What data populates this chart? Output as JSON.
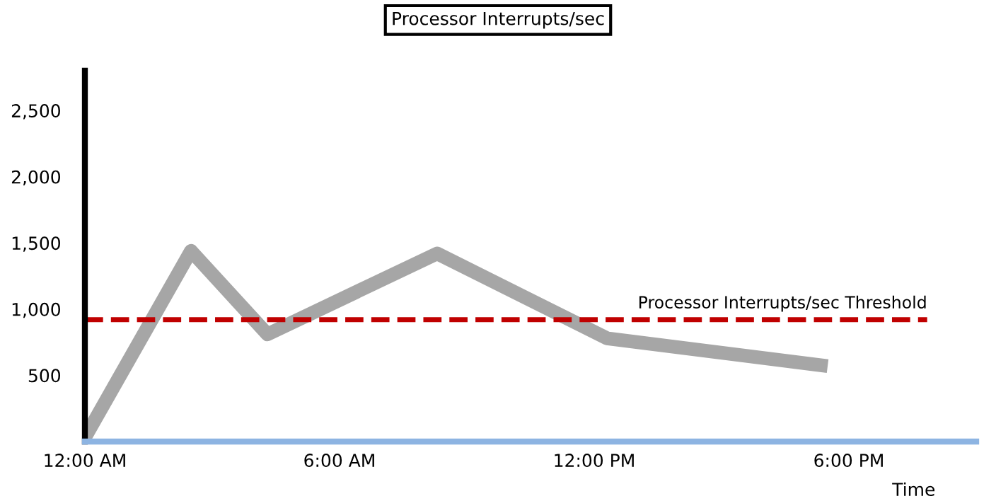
{
  "chart_data": {
    "type": "line",
    "title": "Processor Interrupts/sec",
    "xlabel": "Time",
    "x": [
      0,
      2.5,
      4.3,
      8.3,
      12.3,
      17.5
    ],
    "series": [
      {
        "color": "#a6a6a6",
        "values": [
          30,
          1440,
          810,
          1420,
          780,
          570
        ]
      }
    ],
    "xlim": [
      0,
      21
    ],
    "xticks": [
      {
        "value": 0,
        "label": "12:00 AM"
      },
      {
        "value": 6,
        "label": "6:00 AM"
      },
      {
        "value": 12,
        "label": "12:00 PM"
      },
      {
        "value": 18,
        "label": "6:00 PM"
      }
    ],
    "ylim": [
      0,
      2800
    ],
    "yticks": [
      {
        "value": 500,
        "label": "500"
      },
      {
        "value": 1000,
        "label": "1,000"
      },
      {
        "value": 1500,
        "label": "1,500"
      },
      {
        "value": 2000,
        "label": "2,000"
      },
      {
        "value": 2500,
        "label": "2,500"
      }
    ],
    "ref_lines": [
      {
        "axis": "y",
        "value": 920,
        "label": "Processor Interrupts/sec Threshold",
        "color": "#c00000",
        "line_style": "dashed"
      }
    ],
    "grid": false,
    "marker": "none",
    "line_style": "solid"
  }
}
